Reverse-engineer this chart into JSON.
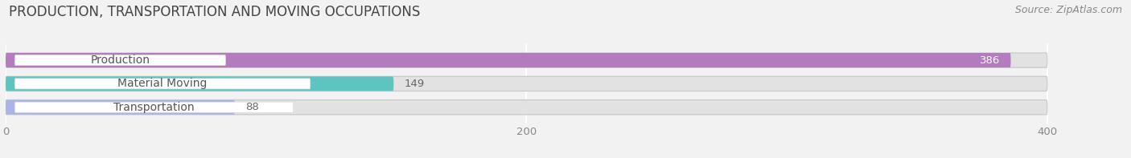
{
  "title": "PRODUCTION, TRANSPORTATION AND MOVING OCCUPATIONS",
  "source": "Source: ZipAtlas.com",
  "categories": [
    "Production",
    "Material Moving",
    "Transportation"
  ],
  "values": [
    386,
    149,
    88
  ],
  "bar_colors": [
    "#b57bbf",
    "#5ec4c0",
    "#a9b4e8"
  ],
  "xlim_max": 430,
  "xticks": [
    0,
    200,
    400
  ],
  "background_color": "#f2f2f2",
  "bar_bg_color": "#e2e2e2",
  "label_bg_color": "#ffffff",
  "title_fontsize": 12,
  "label_fontsize": 10,
  "value_fontsize": 9.5,
  "source_fontsize": 9
}
